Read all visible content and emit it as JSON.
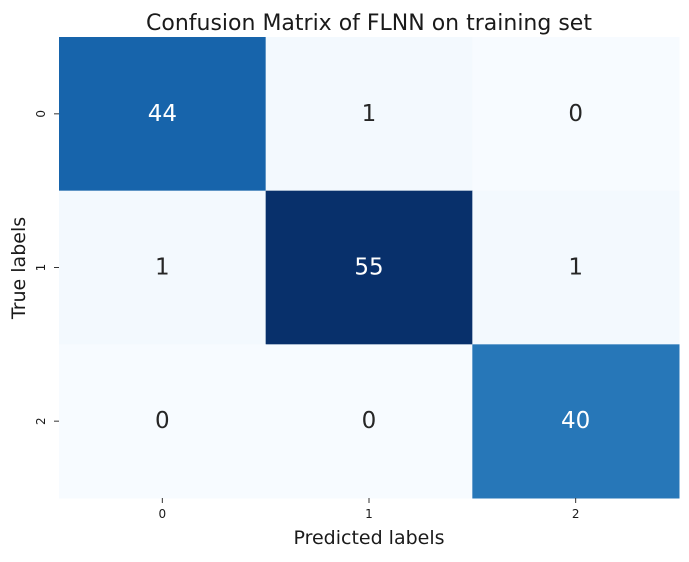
{
  "chart_data": {
    "type": "heatmap",
    "title": "Confusion Matrix of FLNN on training set",
    "xlabel": "Predicted labels",
    "ylabel": "True labels",
    "x_categories": [
      "0",
      "1",
      "2"
    ],
    "y_categories": [
      "0",
      "1",
      "2"
    ],
    "values": [
      [
        44,
        1,
        0
      ],
      [
        1,
        55,
        1
      ],
      [
        0,
        0,
        40
      ]
    ],
    "colormap": "Blues",
    "value_range": [
      0,
      55
    ],
    "colorbar": false,
    "annotation_color_light": "#ffffff",
    "annotation_color_dark": "#262626"
  }
}
